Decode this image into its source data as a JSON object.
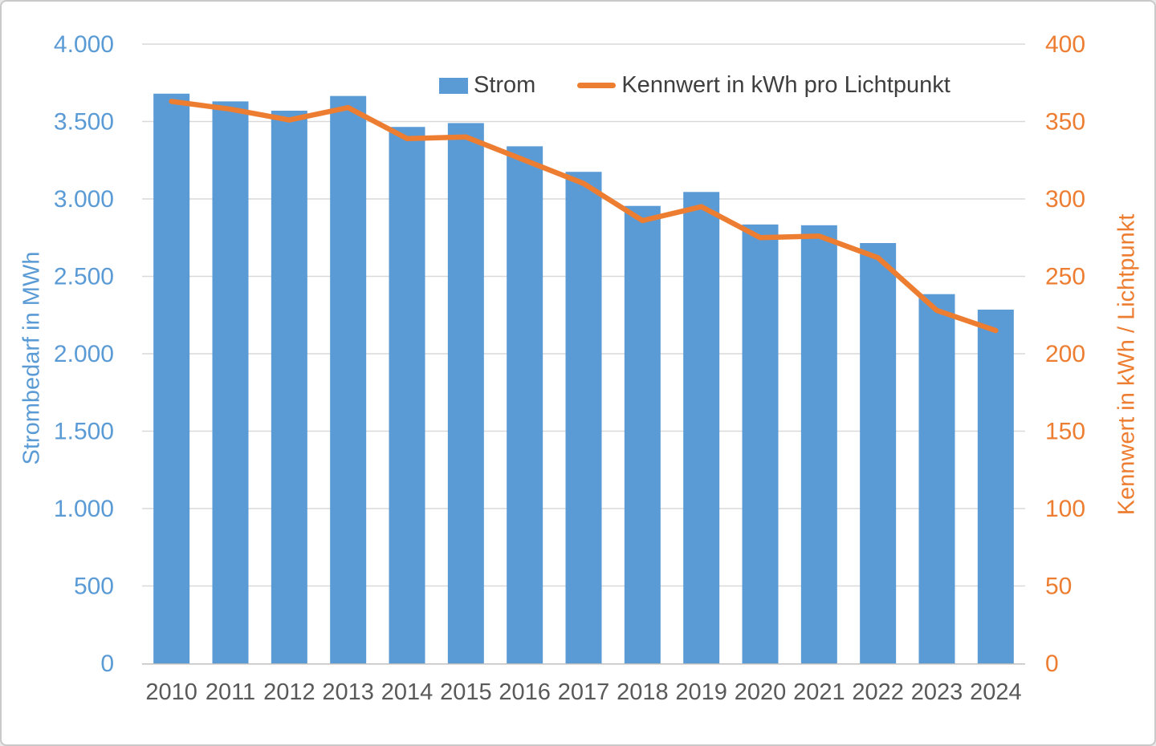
{
  "colors": {
    "bar_blue": "#5B9BD5",
    "line_orange": "#ED7D31",
    "left_axis_text": "#5B9BD5",
    "right_axis_text": "#ED7D31",
    "x_axis_text": "#595959",
    "legend_text": "#3f3f3f",
    "gridline": "#d9d9d9",
    "axis_line": "#bfbfbf"
  },
  "legend": {
    "items": [
      {
        "label": "Strom",
        "swatch": "bar-swatch"
      },
      {
        "label": "Kennwert in kWh pro Lichtpunkt",
        "swatch": "line-swatch"
      }
    ]
  },
  "chart_data": {
    "type": "combo-bar-line",
    "categories": [
      "2010",
      "2011",
      "2012",
      "2013",
      "2014",
      "2015",
      "2016",
      "2017",
      "2018",
      "2019",
      "2020",
      "2021",
      "2022",
      "2023",
      "2024"
    ],
    "series": [
      {
        "name": "Strom",
        "type": "bar",
        "axis": "left",
        "color": "#5B9BD5",
        "values": [
          3680,
          3630,
          3570,
          3665,
          3465,
          3490,
          3340,
          3175,
          2955,
          3045,
          2835,
          2830,
          2715,
          2385,
          2285
        ]
      },
      {
        "name": "Kennwert in kWh pro Lichtpunkt",
        "type": "line",
        "axis": "right",
        "color": "#ED7D31",
        "values": [
          363,
          358,
          351,
          359,
          339,
          340,
          325,
          310,
          286,
          295,
          275,
          276,
          262,
          228,
          215
        ]
      }
    ],
    "left_axis": {
      "title": "Strombedarf in MWh",
      "min": 0,
      "max": 4000,
      "step": 500,
      "tick_labels": [
        "0",
        "500",
        "1.000",
        "1.500",
        "2.000",
        "2.500",
        "3.000",
        "3.500",
        "4.000"
      ]
    },
    "right_axis": {
      "title": "Kennwert in kWh / Lichtpunkt",
      "min": 0,
      "max": 400,
      "step": 50,
      "tick_labels": [
        "0",
        "50",
        "100",
        "150",
        "200",
        "250",
        "300",
        "350",
        "400"
      ]
    },
    "x_axis": {
      "tick_labels": [
        "2010",
        "2011",
        "2012",
        "2013",
        "2014",
        "2015",
        "2016",
        "2017",
        "2018",
        "2019",
        "2020",
        "2021",
        "2022",
        "2023",
        "2024"
      ]
    },
    "grid": true,
    "legend_position": "top-center"
  }
}
